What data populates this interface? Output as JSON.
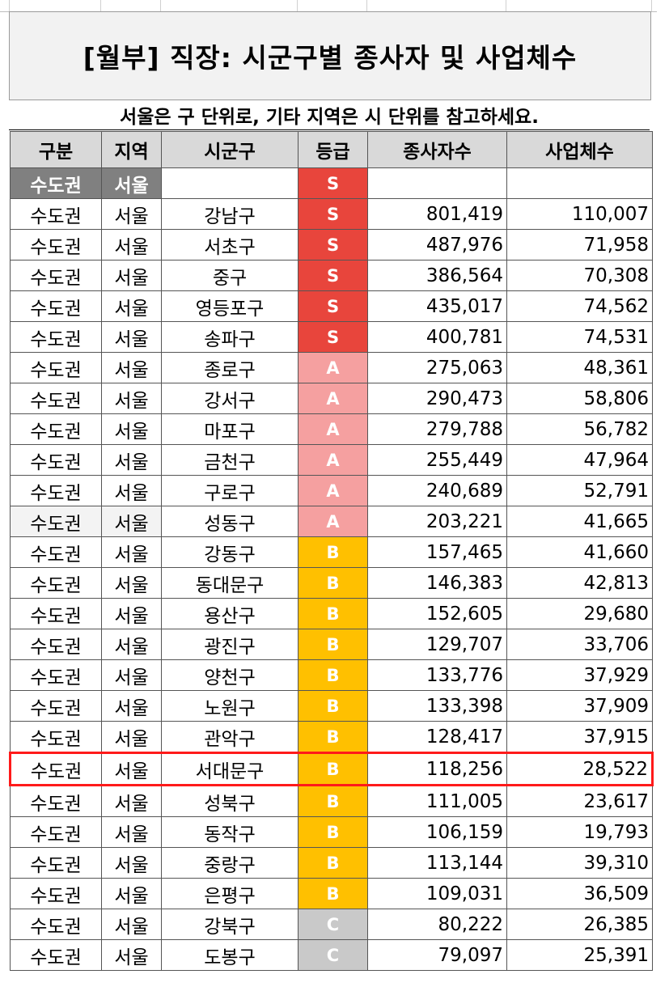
{
  "title": "[월부] 직장: 시군구별 종사자 및 사업체수",
  "subtitle": "서울은 구 단위로, 기타 지역은 시 단위를 참고하세요.",
  "headers": [
    "구분",
    "지역",
    "시군구",
    "등급",
    "종사자수",
    "사업체수"
  ],
  "group_row": {
    "division": "수도권",
    "region": "서울",
    "grade": "S"
  },
  "rows": [
    {
      "division": "수도권",
      "region": "서울",
      "district": "강남구",
      "grade": "S",
      "workers": "801,419",
      "businesses": "110,007"
    },
    {
      "division": "수도권",
      "region": "서울",
      "district": "서초구",
      "grade": "S",
      "workers": "487,976",
      "businesses": "71,958"
    },
    {
      "division": "수도권",
      "region": "서울",
      "district": "중구",
      "grade": "S",
      "workers": "386,564",
      "businesses": "70,308"
    },
    {
      "division": "수도권",
      "region": "서울",
      "district": "영등포구",
      "grade": "S",
      "workers": "435,017",
      "businesses": "74,562"
    },
    {
      "division": "수도권",
      "region": "서울",
      "district": "송파구",
      "grade": "S",
      "workers": "400,781",
      "businesses": "74,531"
    },
    {
      "division": "수도권",
      "region": "서울",
      "district": "종로구",
      "grade": "A",
      "workers": "275,063",
      "businesses": "48,361"
    },
    {
      "division": "수도권",
      "region": "서울",
      "district": "강서구",
      "grade": "A",
      "workers": "290,473",
      "businesses": "58,806"
    },
    {
      "division": "수도권",
      "region": "서울",
      "district": "마포구",
      "grade": "A",
      "workers": "279,788",
      "businesses": "56,782"
    },
    {
      "division": "수도권",
      "region": "서울",
      "district": "금천구",
      "grade": "A",
      "workers": "255,449",
      "businesses": "47,964"
    },
    {
      "division": "수도권",
      "region": "서울",
      "district": "구로구",
      "grade": "A",
      "workers": "240,689",
      "businesses": "52,791"
    },
    {
      "division": "수도권",
      "region": "서울",
      "district": "성동구",
      "grade": "A",
      "workers": "203,221",
      "businesses": "41,665"
    },
    {
      "division": "수도권",
      "region": "서울",
      "district": "강동구",
      "grade": "B",
      "workers": "157,465",
      "businesses": "41,660"
    },
    {
      "division": "수도권",
      "region": "서울",
      "district": "동대문구",
      "grade": "B",
      "workers": "146,383",
      "businesses": "42,813"
    },
    {
      "division": "수도권",
      "region": "서울",
      "district": "용산구",
      "grade": "B",
      "workers": "152,605",
      "businesses": "29,680"
    },
    {
      "division": "수도권",
      "region": "서울",
      "district": "광진구",
      "grade": "B",
      "workers": "129,707",
      "businesses": "33,706"
    },
    {
      "division": "수도권",
      "region": "서울",
      "district": "양천구",
      "grade": "B",
      "workers": "133,776",
      "businesses": "37,929"
    },
    {
      "division": "수도권",
      "region": "서울",
      "district": "노원구",
      "grade": "B",
      "workers": "133,398",
      "businesses": "37,909"
    },
    {
      "division": "수도권",
      "region": "서울",
      "district": "관악구",
      "grade": "B",
      "workers": "128,417",
      "businesses": "37,915"
    },
    {
      "division": "수도권",
      "region": "서울",
      "district": "서대문구",
      "grade": "B",
      "workers": "118,256",
      "businesses": "28,522",
      "highlighted": true
    },
    {
      "division": "수도권",
      "region": "서울",
      "district": "성북구",
      "grade": "B",
      "workers": "111,005",
      "businesses": "23,617"
    },
    {
      "division": "수도권",
      "region": "서울",
      "district": "동작구",
      "grade": "B",
      "workers": "106,159",
      "businesses": "19,793"
    },
    {
      "division": "수도권",
      "region": "서울",
      "district": "중랑구",
      "grade": "B",
      "workers": "113,144",
      "businesses": "39,310"
    },
    {
      "division": "수도권",
      "region": "서울",
      "district": "은평구",
      "grade": "B",
      "workers": "109,031",
      "businesses": "36,509"
    },
    {
      "division": "수도권",
      "region": "서울",
      "district": "강북구",
      "grade": "C",
      "workers": "80,222",
      "businesses": "26,385"
    },
    {
      "division": "수도권",
      "region": "서울",
      "district": "도봉구",
      "grade": "C",
      "workers": "79,097",
      "businesses": "25,391"
    }
  ],
  "colors": {
    "S": "#e8453c",
    "A": "#f5a0a0",
    "B": "#ffc000",
    "C": "#c9c9c9",
    "highlight": "#ff1a1a"
  }
}
